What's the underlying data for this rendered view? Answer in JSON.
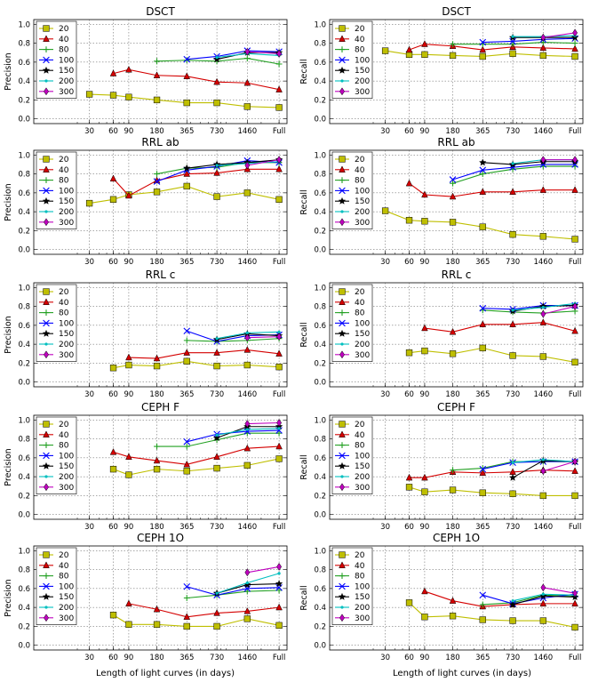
{
  "figure": {
    "xlabel": "Length of light curves (in days)",
    "ylim": [
      -0.05,
      1.05
    ],
    "yticks": [
      "0.0",
      "0.2",
      "0.4",
      "0.6",
      "0.8",
      "1.0"
    ],
    "xticks": [
      "30",
      "60",
      "90",
      "180",
      "365",
      "730",
      "1460",
      "Full"
    ],
    "legend_labels": [
      "20",
      "40",
      "80",
      "100",
      "150",
      "200",
      "300"
    ],
    "legend_placement": "top-left"
  },
  "series_styles": [
    {
      "name": "20",
      "color": "#bfbf00",
      "marker": "square"
    },
    {
      "name": "40",
      "color": "#d40000",
      "marker": "triangle"
    },
    {
      "name": "80",
      "color": "#22a022",
      "marker": "plus"
    },
    {
      "name": "100",
      "color": "#0000ff",
      "marker": "x"
    },
    {
      "name": "150",
      "color": "#000000",
      "marker": "star"
    },
    {
      "name": "200",
      "color": "#00bfbf",
      "marker": "point"
    },
    {
      "name": "300",
      "color": "#bf00bf",
      "marker": "diamond"
    }
  ],
  "chart_data": [
    {
      "type": "line",
      "title": "DSCT",
      "ylabel": "Precision",
      "categories": [
        "30",
        "60",
        "90",
        "180",
        "365",
        "730",
        "1460",
        "Full"
      ],
      "ylim": [
        -0.05,
        1.05
      ],
      "series": [
        {
          "name": "20",
          "values": [
            0.26,
            0.25,
            0.23,
            0.2,
            0.17,
            0.17,
            0.13,
            0.12
          ]
        },
        {
          "name": "40",
          "values": [
            null,
            0.48,
            0.52,
            0.46,
            0.45,
            0.39,
            0.38,
            0.31
          ]
        },
        {
          "name": "80",
          "values": [
            null,
            null,
            null,
            0.61,
            0.62,
            0.61,
            0.64,
            0.58
          ]
        },
        {
          "name": "100",
          "values": [
            null,
            null,
            null,
            null,
            0.63,
            0.66,
            0.72,
            0.71
          ]
        },
        {
          "name": "150",
          "values": [
            null,
            null,
            null,
            null,
            null,
            0.63,
            0.7,
            0.7
          ]
        },
        {
          "name": "200",
          "values": [
            null,
            null,
            null,
            null,
            null,
            0.65,
            0.69,
            0.67
          ]
        },
        {
          "name": "300",
          "values": [
            null,
            null,
            null,
            null,
            null,
            null,
            0.71,
            0.69
          ]
        }
      ]
    },
    {
      "type": "line",
      "title": "DSCT",
      "ylabel": "Recall",
      "categories": [
        "30",
        "60",
        "90",
        "180",
        "365",
        "730",
        "1460",
        "Full"
      ],
      "ylim": [
        -0.05,
        1.05
      ],
      "series": [
        {
          "name": "20",
          "values": [
            0.72,
            0.68,
            0.68,
            0.67,
            0.66,
            0.69,
            0.67,
            0.66
          ]
        },
        {
          "name": "40",
          "values": [
            null,
            0.73,
            0.79,
            0.77,
            0.73,
            0.76,
            0.75,
            0.74
          ]
        },
        {
          "name": "80",
          "values": [
            null,
            null,
            null,
            0.79,
            0.79,
            0.79,
            0.81,
            0.8
          ]
        },
        {
          "name": "100",
          "values": [
            null,
            null,
            null,
            null,
            0.81,
            0.82,
            0.84,
            0.85
          ]
        },
        {
          "name": "150",
          "values": [
            null,
            null,
            null,
            null,
            null,
            0.86,
            0.86,
            0.86
          ]
        },
        {
          "name": "200",
          "values": [
            null,
            null,
            null,
            null,
            null,
            0.87,
            0.87,
            0.88
          ]
        },
        {
          "name": "300",
          "values": [
            null,
            null,
            null,
            null,
            null,
            null,
            0.86,
            0.91
          ]
        }
      ]
    },
    {
      "type": "line",
      "title": "RRL ab",
      "ylabel": "Precision",
      "categories": [
        "30",
        "60",
        "90",
        "180",
        "365",
        "730",
        "1460",
        "Full"
      ],
      "ylim": [
        -0.05,
        1.05
      ],
      "series": [
        {
          "name": "20",
          "values": [
            0.49,
            0.53,
            0.58,
            0.61,
            0.67,
            0.56,
            0.6,
            0.53
          ]
        },
        {
          "name": "40",
          "values": [
            null,
            0.75,
            0.57,
            0.73,
            0.8,
            0.81,
            0.85,
            0.85
          ]
        },
        {
          "name": "80",
          "values": [
            null,
            null,
            null,
            0.8,
            0.86,
            0.87,
            0.92,
            0.92
          ]
        },
        {
          "name": "100",
          "values": [
            null,
            null,
            null,
            0.72,
            0.84,
            0.88,
            0.94,
            0.92
          ]
        },
        {
          "name": "150",
          "values": [
            null,
            null,
            null,
            null,
            0.86,
            0.9,
            0.92,
            0.95
          ]
        },
        {
          "name": "200",
          "values": [
            null,
            null,
            null,
            null,
            null,
            0.89,
            0.91,
            0.93
          ]
        },
        {
          "name": "300",
          "values": [
            null,
            null,
            null,
            null,
            null,
            null,
            0.89,
            0.95
          ]
        }
      ]
    },
    {
      "type": "line",
      "title": "RRL ab",
      "ylabel": "Recall",
      "categories": [
        "30",
        "60",
        "90",
        "180",
        "365",
        "730",
        "1460",
        "Full"
      ],
      "ylim": [
        -0.05,
        1.05
      ],
      "series": [
        {
          "name": "20",
          "values": [
            0.41,
            0.31,
            0.3,
            0.29,
            0.24,
            0.16,
            0.14,
            0.11
          ]
        },
        {
          "name": "40",
          "values": [
            null,
            0.7,
            0.58,
            0.56,
            0.61,
            0.61,
            0.63,
            0.63
          ]
        },
        {
          "name": "80",
          "values": [
            null,
            null,
            null,
            0.7,
            0.8,
            0.85,
            0.88,
            0.88
          ]
        },
        {
          "name": "100",
          "values": [
            null,
            null,
            null,
            0.74,
            0.84,
            0.87,
            0.9,
            0.9
          ]
        },
        {
          "name": "150",
          "values": [
            null,
            null,
            null,
            null,
            0.92,
            0.9,
            0.93,
            0.93
          ]
        },
        {
          "name": "200",
          "values": [
            null,
            null,
            null,
            null,
            null,
            0.91,
            0.95,
            0.95
          ]
        },
        {
          "name": "300",
          "values": [
            null,
            null,
            null,
            null,
            null,
            null,
            0.95,
            0.95
          ]
        }
      ]
    },
    {
      "type": "line",
      "title": "RRL c",
      "ylabel": "Precision",
      "categories": [
        "30",
        "60",
        "90",
        "180",
        "365",
        "730",
        "1460",
        "Full"
      ],
      "ylim": [
        -0.05,
        1.05
      ],
      "series": [
        {
          "name": "20",
          "values": [
            null,
            0.15,
            0.18,
            0.17,
            0.22,
            0.17,
            0.18,
            0.16
          ]
        },
        {
          "name": "40",
          "values": [
            null,
            null,
            0.26,
            0.25,
            0.31,
            0.31,
            0.34,
            0.3
          ]
        },
        {
          "name": "80",
          "values": [
            null,
            null,
            null,
            null,
            0.44,
            0.43,
            0.44,
            0.46
          ]
        },
        {
          "name": "100",
          "values": [
            null,
            null,
            null,
            null,
            0.54,
            0.43,
            0.49,
            0.5
          ]
        },
        {
          "name": "150",
          "values": [
            null,
            null,
            null,
            null,
            null,
            0.45,
            0.51,
            0.49
          ]
        },
        {
          "name": "200",
          "values": [
            null,
            null,
            null,
            null,
            null,
            0.46,
            0.52,
            0.53
          ]
        },
        {
          "name": "300",
          "values": [
            null,
            null,
            null,
            null,
            null,
            null,
            0.47,
            0.48
          ]
        }
      ]
    },
    {
      "type": "line",
      "title": "RRL c",
      "ylabel": "Recall",
      "categories": [
        "30",
        "60",
        "90",
        "180",
        "365",
        "730",
        "1460",
        "Full"
      ],
      "ylim": [
        -0.05,
        1.05
      ],
      "series": [
        {
          "name": "20",
          "values": [
            null,
            0.31,
            0.33,
            0.3,
            0.36,
            0.28,
            0.27,
            0.21
          ]
        },
        {
          "name": "40",
          "values": [
            null,
            null,
            0.57,
            0.53,
            0.61,
            0.61,
            0.63,
            0.54
          ]
        },
        {
          "name": "80",
          "values": [
            null,
            null,
            null,
            null,
            0.76,
            0.74,
            0.73,
            0.75
          ]
        },
        {
          "name": "100",
          "values": [
            null,
            null,
            null,
            null,
            0.78,
            0.77,
            0.81,
            0.81
          ]
        },
        {
          "name": "150",
          "values": [
            null,
            null,
            null,
            null,
            null,
            0.75,
            0.8,
            0.81
          ]
        },
        {
          "name": "200",
          "values": [
            null,
            null,
            null,
            null,
            null,
            0.76,
            0.79,
            0.83
          ]
        },
        {
          "name": "300",
          "values": [
            null,
            null,
            null,
            null,
            null,
            null,
            0.72,
            0.8
          ]
        }
      ]
    },
    {
      "type": "line",
      "title": "CEPH F",
      "ylabel": "Precision",
      "categories": [
        "30",
        "60",
        "90",
        "180",
        "365",
        "730",
        "1460",
        "Full"
      ],
      "ylim": [
        -0.05,
        1.05
      ],
      "series": [
        {
          "name": "20",
          "values": [
            null,
            0.48,
            0.42,
            0.48,
            0.46,
            0.49,
            0.52,
            0.59
          ]
        },
        {
          "name": "40",
          "values": [
            null,
            0.66,
            0.61,
            0.57,
            0.53,
            0.61,
            0.7,
            0.72
          ]
        },
        {
          "name": "80",
          "values": [
            null,
            null,
            null,
            0.72,
            0.72,
            0.79,
            0.86,
            0.86
          ]
        },
        {
          "name": "100",
          "values": [
            null,
            null,
            null,
            null,
            0.77,
            0.85,
            0.88,
            0.89
          ]
        },
        {
          "name": "150",
          "values": [
            null,
            null,
            null,
            null,
            null,
            0.81,
            0.93,
            0.93
          ]
        },
        {
          "name": "200",
          "values": [
            null,
            null,
            null,
            null,
            null,
            0.84,
            0.9,
            0.91
          ]
        },
        {
          "name": "300",
          "values": [
            null,
            null,
            null,
            null,
            null,
            null,
            0.96,
            0.97
          ]
        }
      ]
    },
    {
      "type": "line",
      "title": "CEPH F",
      "ylabel": "Recall",
      "categories": [
        "30",
        "60",
        "90",
        "180",
        "365",
        "730",
        "1460",
        "Full"
      ],
      "ylim": [
        -0.05,
        1.05
      ],
      "series": [
        {
          "name": "20",
          "values": [
            null,
            0.29,
            0.24,
            0.26,
            0.23,
            0.22,
            0.2,
            0.2
          ]
        },
        {
          "name": "40",
          "values": [
            null,
            0.39,
            0.39,
            0.45,
            0.44,
            0.45,
            0.47,
            0.46
          ]
        },
        {
          "name": "80",
          "values": [
            null,
            null,
            null,
            0.47,
            0.49,
            0.56,
            0.56,
            0.56
          ]
        },
        {
          "name": "100",
          "values": [
            null,
            null,
            null,
            null,
            0.48,
            0.55,
            0.56,
            0.56
          ]
        },
        {
          "name": "150",
          "values": [
            null,
            null,
            null,
            null,
            null,
            0.39,
            0.57,
            0.56
          ]
        },
        {
          "name": "200",
          "values": [
            null,
            null,
            null,
            null,
            null,
            0.55,
            0.58,
            0.56
          ]
        },
        {
          "name": "300",
          "values": [
            null,
            null,
            null,
            null,
            null,
            null,
            0.46,
            0.56
          ]
        }
      ]
    },
    {
      "type": "line",
      "title": "CEPH 1O",
      "ylabel": "Precision",
      "categories": [
        "30",
        "60",
        "90",
        "180",
        "365",
        "730",
        "1460",
        "Full"
      ],
      "ylim": [
        -0.05,
        1.05
      ],
      "series": [
        {
          "name": "20",
          "values": [
            null,
            0.32,
            0.22,
            0.22,
            0.2,
            0.2,
            0.28,
            0.21
          ]
        },
        {
          "name": "40",
          "values": [
            null,
            null,
            0.44,
            0.38,
            0.3,
            0.34,
            0.36,
            0.4
          ]
        },
        {
          "name": "80",
          "values": [
            null,
            null,
            null,
            null,
            0.5,
            0.53,
            0.57,
            0.58
          ]
        },
        {
          "name": "100",
          "values": [
            null,
            null,
            null,
            null,
            0.62,
            0.53,
            0.6,
            0.61
          ]
        },
        {
          "name": "150",
          "values": [
            null,
            null,
            null,
            null,
            null,
            0.55,
            0.64,
            0.65
          ]
        },
        {
          "name": "200",
          "values": [
            null,
            null,
            null,
            null,
            null,
            0.55,
            0.66,
            0.76
          ]
        },
        {
          "name": "300",
          "values": [
            null,
            null,
            null,
            null,
            null,
            null,
            0.77,
            0.83
          ]
        }
      ]
    },
    {
      "type": "line",
      "title": "CEPH 1O",
      "ylabel": "Recall",
      "categories": [
        "30",
        "60",
        "90",
        "180",
        "365",
        "730",
        "1460",
        "Full"
      ],
      "ylim": [
        -0.05,
        1.05
      ],
      "series": [
        {
          "name": "20",
          "values": [
            null,
            0.45,
            0.3,
            0.31,
            0.27,
            0.26,
            0.26,
            0.19
          ]
        },
        {
          "name": "40",
          "values": [
            null,
            null,
            0.57,
            0.47,
            0.41,
            0.43,
            0.44,
            0.44
          ]
        },
        {
          "name": "80",
          "values": [
            null,
            null,
            null,
            null,
            0.43,
            0.45,
            0.53,
            0.52
          ]
        },
        {
          "name": "100",
          "values": [
            null,
            null,
            null,
            null,
            0.53,
            0.44,
            0.5,
            0.54
          ]
        },
        {
          "name": "150",
          "values": [
            null,
            null,
            null,
            null,
            null,
            0.43,
            0.52,
            0.51
          ]
        },
        {
          "name": "200",
          "values": [
            null,
            null,
            null,
            null,
            null,
            0.47,
            0.54,
            0.53
          ]
        },
        {
          "name": "300",
          "values": [
            null,
            null,
            null,
            null,
            null,
            null,
            0.61,
            0.55
          ]
        }
      ]
    }
  ]
}
